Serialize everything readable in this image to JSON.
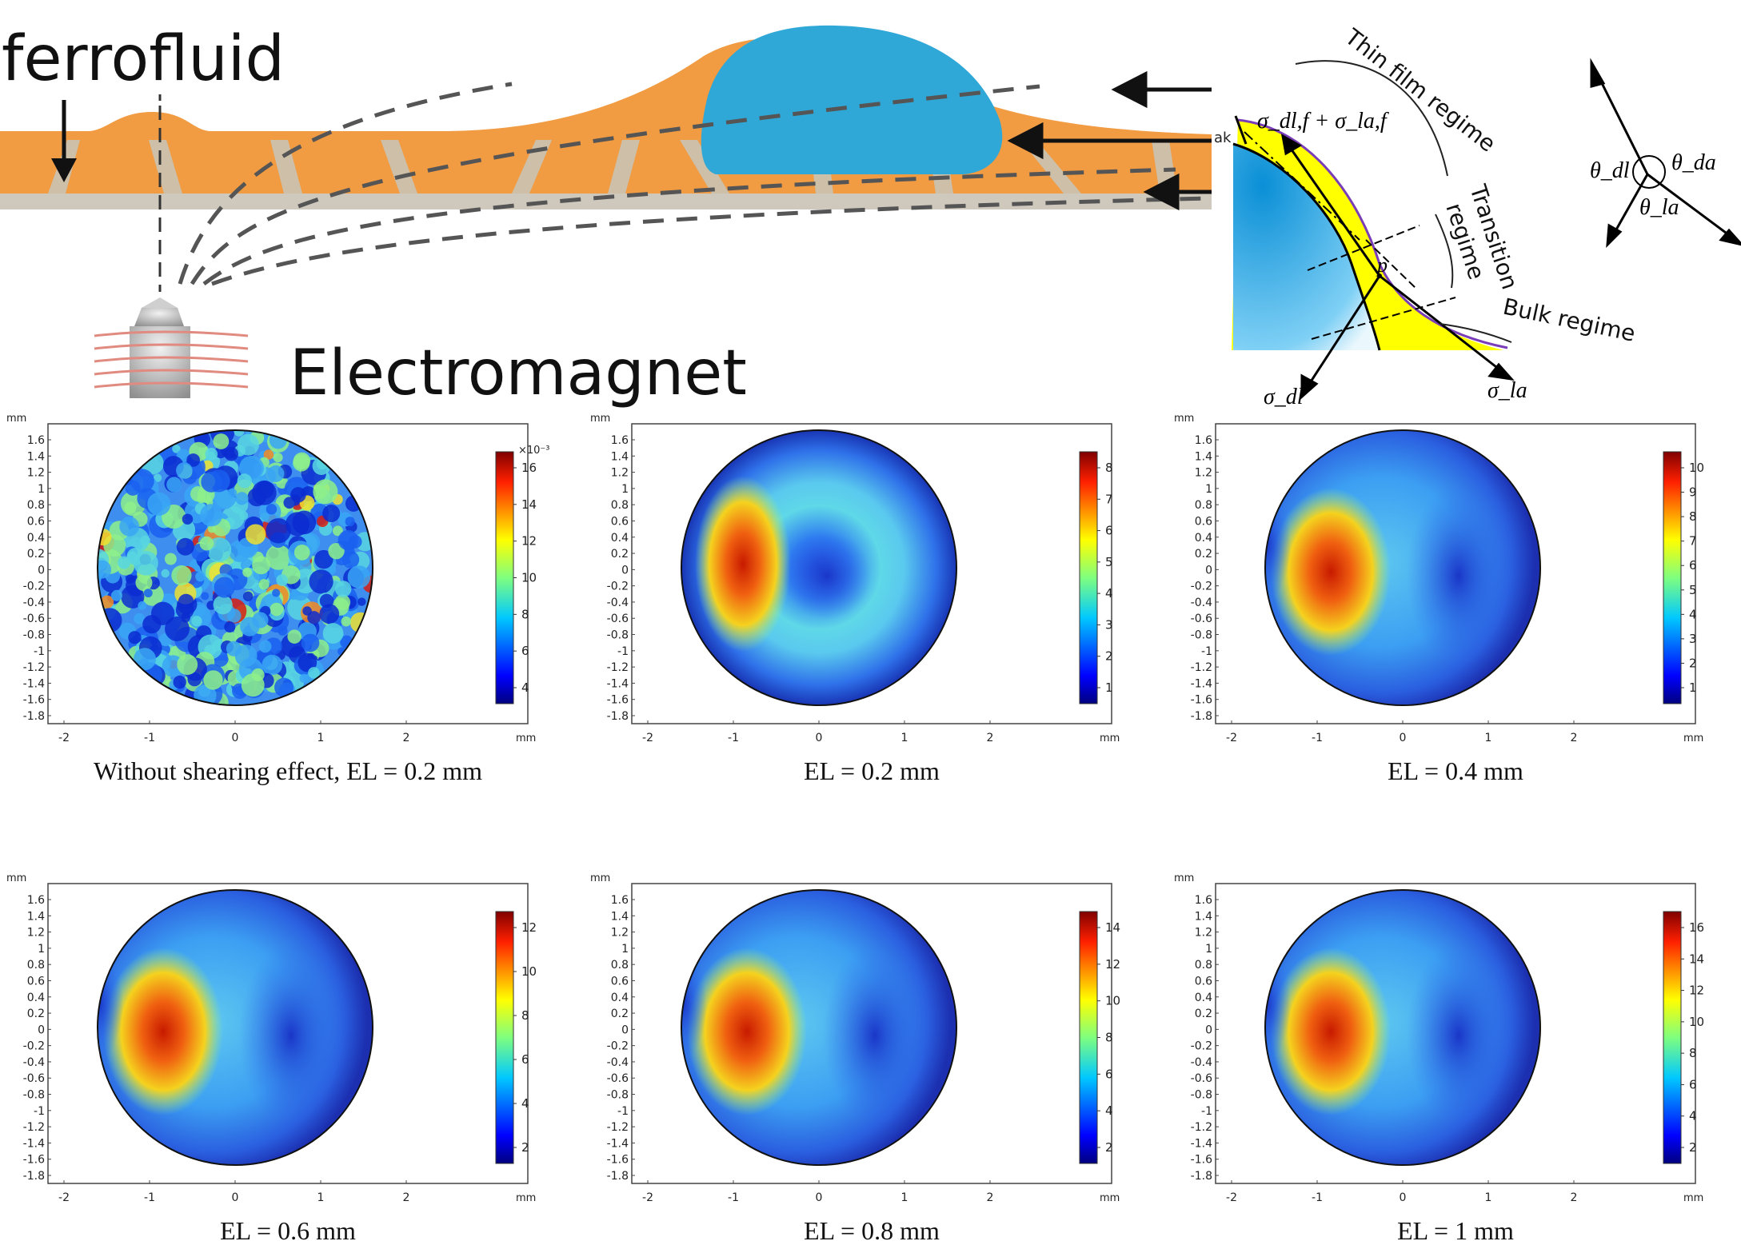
{
  "schematic": {
    "ferrofluid_label": "ferrofluid",
    "electromagnet_label": "Electromagnet",
    "colors": {
      "substrate": "#f19b42",
      "droplet": "#2fa8d8",
      "pillar": "#cdbfa8",
      "base": "#cfc8bd"
    }
  },
  "contact_line": {
    "thin_film_regime": "Thin film regime",
    "transition_regime_line1": "Transition",
    "transition_regime_line2": "regime",
    "bulk_regime": "Bulk regime",
    "sigma_film_sum": "σ_dl,f + σ_la,f",
    "sigma_dl": "σ_dl",
    "sigma_la": "σ_la",
    "point_p": "p",
    "ak_fragment": "ak",
    "colors": {
      "film": "#ffff00",
      "interface": "#7a3db8",
      "drop": "#1ba3e0"
    }
  },
  "angles": {
    "theta_dl": "θ_dl",
    "theta_da": "θ_da",
    "theta_la": "θ_la"
  },
  "figure": {
    "unit_label": "mm",
    "y_tick_labels": [
      "1.6",
      "1.4",
      "1.2",
      "1",
      "0.8",
      "0.6",
      "0.4",
      "0.2",
      "0",
      "-0.2",
      "-0.4",
      "-0.6",
      "-0.8",
      "-1",
      "-1.2",
      "-1.4",
      "-1.6",
      "-1.8"
    ],
    "x_tick_labels": [
      "-2",
      "-1",
      "0",
      "1",
      "2"
    ],
    "panels": [
      {
        "caption": "Without shearing effect, EL = 0.2 mm",
        "colorbar_multiplier": "×10⁻³",
        "colorbar_ticks": [
          "16",
          "14",
          "12",
          "10",
          "8",
          "6",
          "4"
        ],
        "pattern": "noise"
      },
      {
        "caption": "EL = 0.2 mm",
        "colorbar_multiplier": "",
        "colorbar_ticks": [
          "8",
          "7",
          "6",
          "5",
          "4",
          "3",
          "2",
          "1"
        ],
        "pattern": "ring"
      },
      {
        "caption": "EL = 0.4 mm",
        "colorbar_multiplier": "",
        "colorbar_ticks": [
          "10",
          "9",
          "8",
          "7",
          "6",
          "5",
          "4",
          "3",
          "2",
          "1"
        ],
        "pattern": "crescent"
      },
      {
        "caption": "EL = 0.6 mm",
        "colorbar_multiplier": "",
        "colorbar_ticks": [
          "12",
          "10",
          "8",
          "6",
          "4",
          "2"
        ],
        "pattern": "crescent"
      },
      {
        "caption": "EL = 0.8 mm",
        "colorbar_multiplier": "",
        "colorbar_ticks": [
          "14",
          "12",
          "10",
          "8",
          "6",
          "4",
          "2"
        ],
        "pattern": "crescent"
      },
      {
        "caption": "EL = 1 mm",
        "colorbar_multiplier": "",
        "colorbar_ticks": [
          "16",
          "14",
          "12",
          "10",
          "8",
          "6",
          "4",
          "2"
        ],
        "pattern": "crescent"
      }
    ]
  }
}
